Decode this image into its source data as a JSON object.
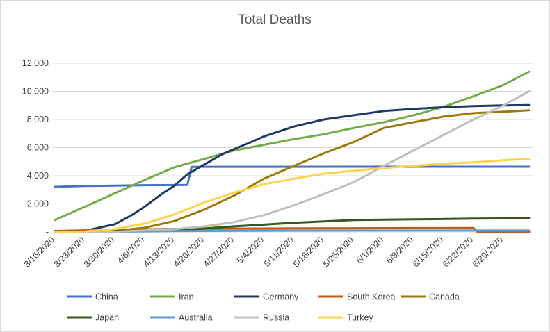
{
  "chart_data": {
    "type": "line",
    "title": "Total Deaths",
    "xlabel": "",
    "ylabel": "",
    "ylim": [
      0,
      12000
    ],
    "yticks": [
      0,
      2000,
      4000,
      6000,
      8000,
      10000,
      12000
    ],
    "ytick_labels": [
      "-",
      "2,000",
      "4,000",
      "6,000",
      "8,000",
      "10,000",
      "12,000"
    ],
    "xtick_labels": [
      "3/16/2020",
      "3/23/2020",
      "3/30/2020",
      "4/6/2020",
      "4/13/2020",
      "4/20/2020",
      "4/27/2020",
      "5/4/2020",
      "5/11/2020",
      "5/18/2020",
      "5/25/2020",
      "6/1/2020",
      "6/8/2020",
      "6/15/2020",
      "6/22/2020",
      "6/29/2020"
    ],
    "x_start": "3/16/2020",
    "x_end": "7/5/2020",
    "grid": true,
    "legend_position": "bottom",
    "series": [
      {
        "name": "China",
        "color": "#4472C4",
        "dates": [
          "3/16/2020",
          "3/23/2020",
          "3/30/2020",
          "4/6/2020",
          "4/13/2020",
          "4/16/2020",
          "4/17/2020",
          "4/20/2020",
          "7/5/2020"
        ],
        "values": [
          3210,
          3270,
          3300,
          3330,
          3340,
          3345,
          4630,
          4635,
          4640
        ]
      },
      {
        "name": "Iran",
        "color": "#70AD47",
        "dates": [
          "3/16/2020",
          "3/23/2020",
          "3/30/2020",
          "4/6/2020",
          "4/13/2020",
          "4/20/2020",
          "4/27/2020",
          "5/4/2020",
          "5/11/2020",
          "5/18/2020",
          "5/25/2020",
          "6/1/2020",
          "6/8/2020",
          "6/15/2020",
          "6/22/2020",
          "6/29/2020",
          "7/5/2020"
        ],
        "values": [
          850,
          1800,
          2750,
          3700,
          4600,
          5200,
          5800,
          6200,
          6600,
          6950,
          7400,
          7800,
          8300,
          8900,
          9650,
          10450,
          11400
        ]
      },
      {
        "name": "Germany",
        "color": "#203864",
        "dates": [
          "3/16/2020",
          "3/23/2020",
          "3/30/2020",
          "4/3/2020",
          "4/6/2020",
          "4/10/2020",
          "4/13/2020",
          "4/16/2020",
          "4/20/2020",
          "4/24/2020",
          "4/27/2020",
          "5/1/2020",
          "5/4/2020",
          "5/11/2020",
          "5/18/2020",
          "5/25/2020",
          "6/1/2020",
          "6/8/2020",
          "6/15/2020",
          "6/22/2020",
          "6/29/2020",
          "7/5/2020"
        ],
        "values": [
          20,
          90,
          550,
          1200,
          1800,
          2700,
          3300,
          4100,
          4800,
          5500,
          5900,
          6400,
          6800,
          7500,
          8000,
          8300,
          8600,
          8750,
          8870,
          8950,
          9000,
          9020
        ]
      },
      {
        "name": "South Korea",
        "color": "#C55A11",
        "dates": [
          "3/16/2020",
          "3/30/2020",
          "4/13/2020",
          "4/27/2020",
          "5/11/2020",
          "5/25/2020",
          "6/8/2020",
          "6/22/2020",
          "6/23/2020",
          "7/5/2020"
        ],
        "values": [
          75,
          158,
          217,
          244,
          256,
          269,
          276,
          281,
          0,
          0
        ]
      },
      {
        "name": "Canada",
        "color": "#9C7A0A",
        "dates": [
          "3/16/2020",
          "3/23/2020",
          "3/30/2020",
          "4/6/2020",
          "4/13/2020",
          "4/20/2020",
          "4/27/2020",
          "5/4/2020",
          "5/11/2020",
          "5/18/2020",
          "5/25/2020",
          "6/1/2020",
          "6/8/2020",
          "6/15/2020",
          "6/22/2020",
          "6/29/2020",
          "7/5/2020"
        ],
        "values": [
          5,
          20,
          80,
          300,
          780,
          1600,
          2600,
          3800,
          4700,
          5600,
          6400,
          7400,
          7800,
          8200,
          8450,
          8550,
          8650
        ]
      },
      {
        "name": "Japan",
        "color": "#375623",
        "dates": [
          "3/16/2020",
          "3/30/2020",
          "4/13/2020",
          "4/27/2020",
          "5/11/2020",
          "5/25/2020",
          "6/8/2020",
          "6/22/2020",
          "7/5/2020"
        ],
        "values": [
          20,
          60,
          100,
          400,
          650,
          850,
          900,
          950,
          980
        ]
      },
      {
        "name": "Australia",
        "color": "#5B9BD5",
        "dates": [
          "3/16/2020",
          "3/30/2020",
          "4/13/2020",
          "4/27/2020",
          "5/11/2020",
          "5/25/2020",
          "6/8/2020",
          "6/22/2020",
          "7/5/2020"
        ],
        "values": [
          5,
          20,
          60,
          85,
          98,
          102,
          102,
          104,
          104
        ]
      },
      {
        "name": "Russia",
        "color": "#BFBFBF",
        "dates": [
          "3/16/2020",
          "3/30/2020",
          "4/13/2020",
          "4/20/2020",
          "4/27/2020",
          "5/4/2020",
          "5/11/2020",
          "5/18/2020",
          "5/25/2020",
          "6/1/2020",
          "6/8/2020",
          "6/15/2020",
          "6/22/2020",
          "6/29/2020",
          "7/5/2020"
        ],
        "values": [
          0,
          20,
          200,
          400,
          700,
          1200,
          1900,
          2700,
          3550,
          4700,
          5800,
          6900,
          8000,
          9000,
          10000
        ]
      },
      {
        "name": "Turkey",
        "color": "#FFD34D",
        "dates": [
          "3/16/2020",
          "3/23/2020",
          "3/30/2020",
          "4/6/2020",
          "4/13/2020",
          "4/20/2020",
          "4/27/2020",
          "5/4/2020",
          "5/11/2020",
          "5/18/2020",
          "5/25/2020",
          "6/1/2020",
          "6/8/2020",
          "6/15/2020",
          "6/22/2020",
          "6/29/2020",
          "7/5/2020"
        ],
        "values": [
          10,
          40,
          200,
          600,
          1250,
          2100,
          2800,
          3400,
          3800,
          4150,
          4350,
          4550,
          4700,
          4850,
          4950,
          5100,
          5200
        ]
      }
    ]
  }
}
